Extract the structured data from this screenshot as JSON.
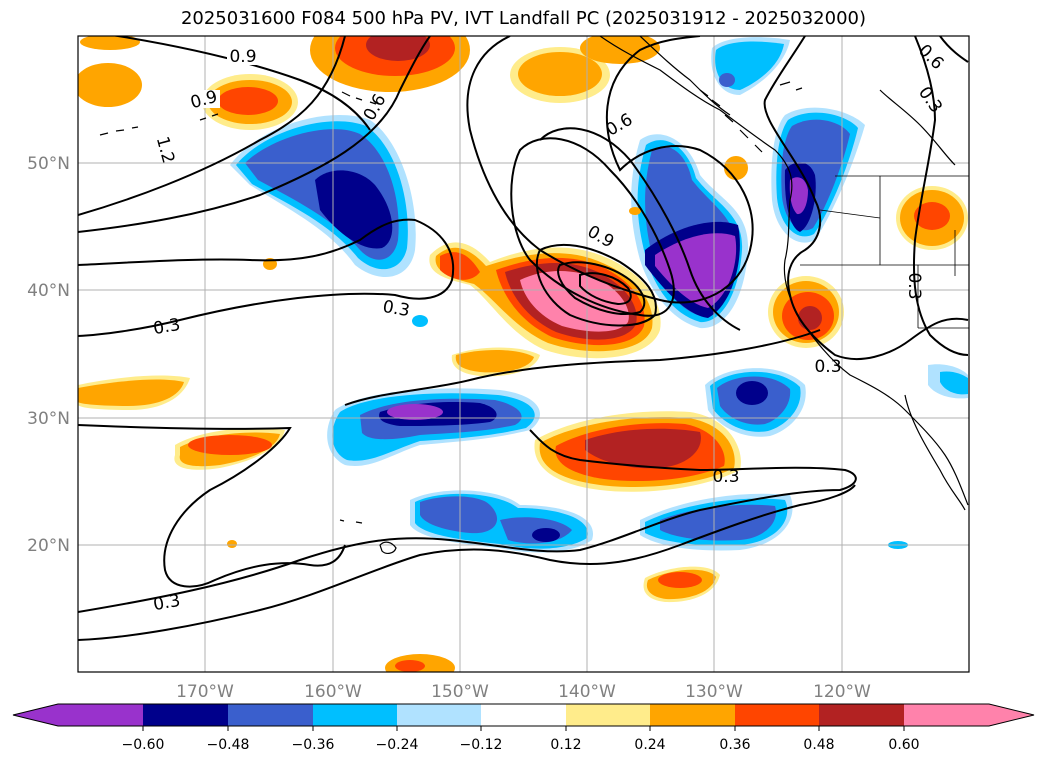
{
  "title": "2025031600 F084 500 hPa PV, IVT Landfall PC (2025031912 - 2025032000)",
  "map": {
    "lon_labels": [
      "170°W",
      "160°W",
      "150°W",
      "140°W",
      "130°W",
      "120°W"
    ],
    "lat_labels": [
      "50°N",
      "40°N",
      "30°N",
      "20°N"
    ],
    "grid": true,
    "contour_labels": [
      "0.9",
      "0.9",
      "1.2",
      "0.6",
      "0.6",
      "0.6",
      "0.9",
      "0.3",
      "0.3",
      "0.3",
      "0.3",
      "0.3",
      "0.3"
    ]
  },
  "colorbar": {
    "levels": [
      "−0.60",
      "−0.48",
      "−0.36",
      "−0.24",
      "−0.12",
      "0.12",
      "0.24",
      "0.36",
      "0.48",
      "0.60"
    ],
    "colors": [
      "#9932cc",
      "#00008b",
      "#3a5fcd",
      "#00bfff",
      "#b0e2ff",
      "#ffffff",
      "#ffec8b",
      "#ffa500",
      "#ff4500",
      "#b22222",
      "#ff82ab"
    ],
    "extend": "both"
  }
}
